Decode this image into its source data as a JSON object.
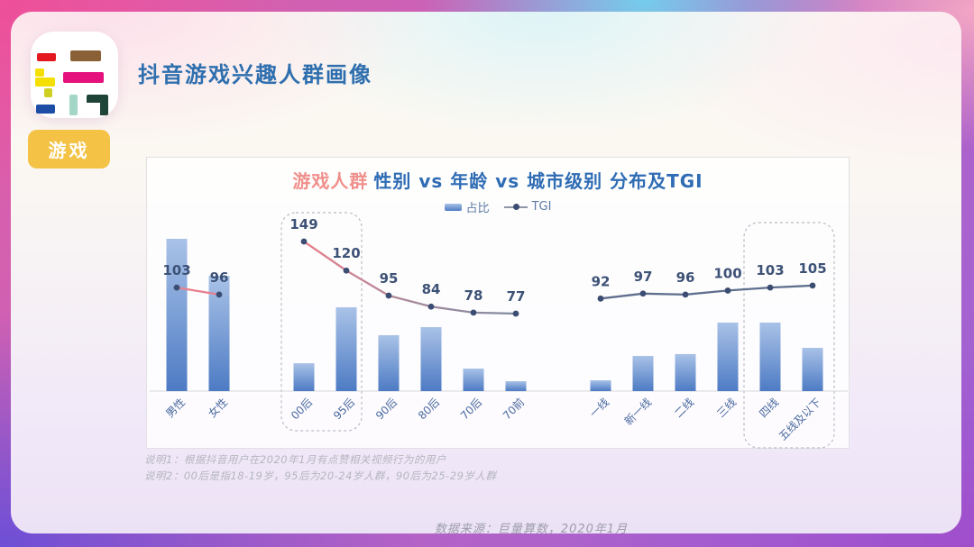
{
  "header": {
    "title": "抖音游戏兴趣人群画像"
  },
  "tag": {
    "label": "游戏"
  },
  "logo": {
    "blocks": [
      {
        "name": "red-bar",
        "color": "#e4191f"
      },
      {
        "name": "yellow-square-1",
        "color": "#f5df00"
      },
      {
        "name": "yellow-bar",
        "color": "#f5df00"
      },
      {
        "name": "yellow-square-2",
        "color": "#cfd023"
      },
      {
        "name": "blue-bar",
        "color": "#1e4da6"
      },
      {
        "name": "brown-bar",
        "color": "#8a6137"
      },
      {
        "name": "magenta-bar",
        "color": "#e5127e"
      },
      {
        "name": "teal-bar",
        "color": "#a3d6c6"
      },
      {
        "name": "green-hook",
        "color": "#1e4438"
      }
    ]
  },
  "chart": {
    "title_highlight": "游戏人群",
    "title_rest": "性别 vs 年龄 vs 城市级别 分布及TGI",
    "legend": [
      {
        "label": "占比"
      },
      {
        "label": "TGI"
      }
    ]
  },
  "chart_data": {
    "type": "bar+line",
    "title": "游戏人群 性别 vs 年龄 vs 城市级别 分布及TGI",
    "categories": [
      "男性",
      "女性",
      "00后",
      "95后",
      "90后",
      "80后",
      "70后",
      "70前",
      "一线",
      "新一线",
      "二线",
      "三线",
      "四线",
      "五线及以下"
    ],
    "groups": [
      {
        "name": "性别",
        "category_indexes": [
          0,
          1
        ]
      },
      {
        "name": "年龄",
        "category_indexes": [
          2,
          3,
          4,
          5,
          6,
          7
        ]
      },
      {
        "name": "城市级别",
        "category_indexes": [
          8,
          9,
          10,
          11,
          12,
          13
        ]
      }
    ],
    "series": [
      {
        "name": "占比",
        "type": "bar",
        "note": "values unlabeled in chart; relative heights estimated from pixels (1 = tallest bar)",
        "values_relative": [
          1.0,
          0.757,
          0.183,
          0.55,
          0.367,
          0.42,
          0.148,
          0.065,
          0.071,
          0.231,
          0.243,
          0.45,
          0.45,
          0.284
        ]
      },
      {
        "name": "TGI",
        "type": "line",
        "values": [
          103,
          96,
          149,
          120,
          95,
          84,
          78,
          77,
          92,
          97,
          96,
          100,
          103,
          105
        ]
      }
    ],
    "highlighted_categories": [
      [
        "00后",
        "95后"
      ],
      [
        "四线",
        "五线及以下"
      ]
    ],
    "legend_position": "top",
    "grid": false,
    "value_labels": "TGI series only"
  },
  "notes": [
    "说明1：根据抖音用户在2020年1月有点赞相关视频行为的用户",
    "说明2：00后是指18-19岁，95后为20-24岁人群，90后为25-29岁人群"
  ],
  "footer": {
    "source": "数据来源：巨量算数，2020年1月"
  },
  "colors": {
    "bar_top": "#a9c2e7",
    "bar_bottom": "#4d7bc4",
    "line_pink": "#e8808e",
    "line_gray_blue": "#5f6f8e",
    "line_fade_mid": "#a38c9e",
    "line_fade_end": "#7e8aa1",
    "dot": "#3c4d73",
    "tgi_label": "#3d5277",
    "category_label": "#49699f",
    "axis": "#d6d6da",
    "dashed_box": "#b9bdc6",
    "title_highlight": "#f0908c",
    "title_blue": "#2f6cb4",
    "header_blue": "#2f6fae",
    "tag_bg": "#f4c245"
  }
}
